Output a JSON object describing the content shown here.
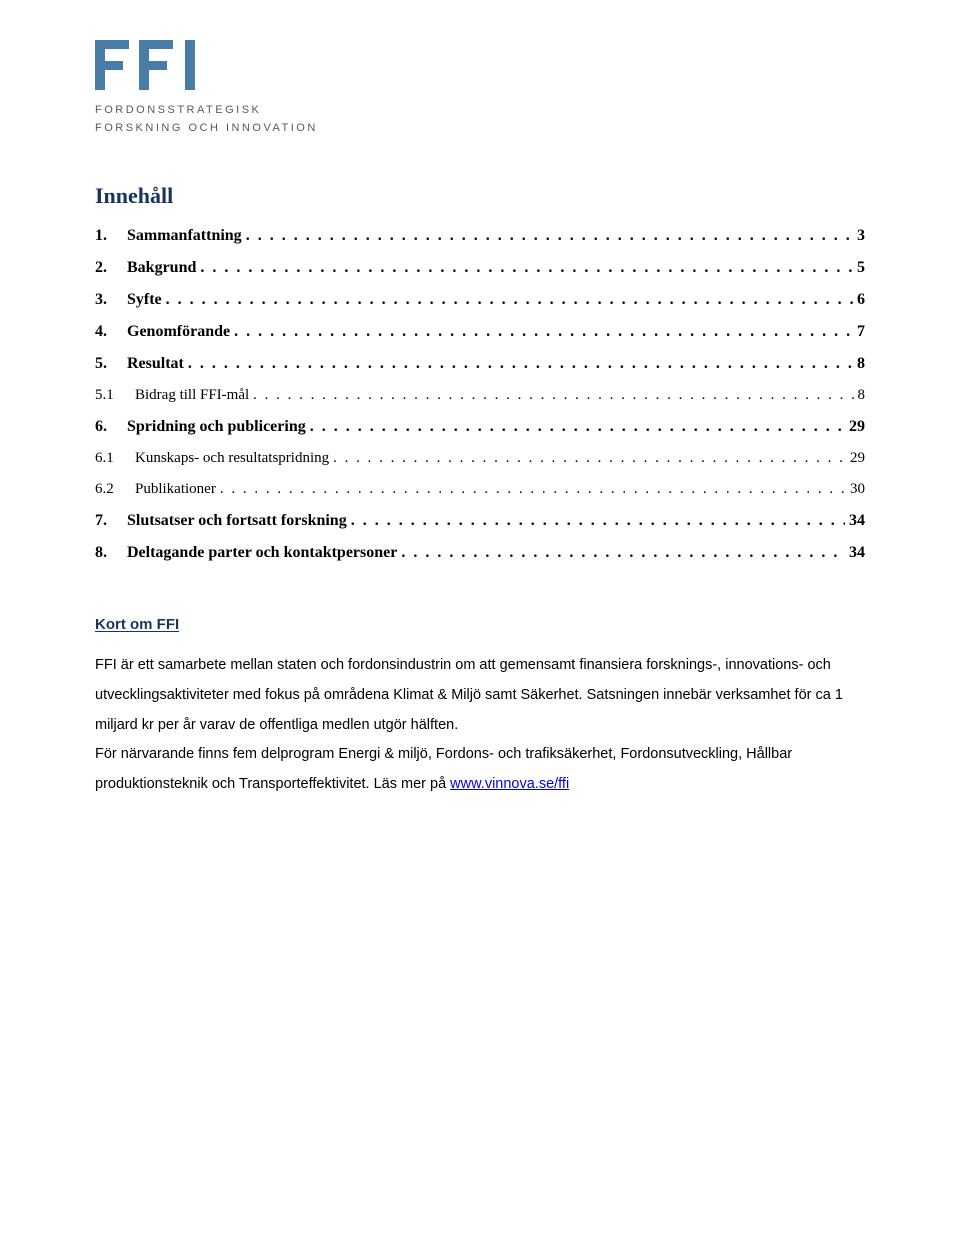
{
  "logo": {
    "letters": "FFI",
    "color": "#4a7ca8",
    "sub_line1": "Fordonsstrategisk",
    "sub_line2": "Forskning och Innovation",
    "sub_color": "#5a5a5a"
  },
  "heading_color": "#17365d",
  "toc": {
    "title": "Innehåll",
    "entries": [
      {
        "level": 1,
        "num": "1.",
        "label": "Sammanfattning",
        "page": "3"
      },
      {
        "level": 1,
        "num": "2.",
        "label": "Bakgrund",
        "page": "5"
      },
      {
        "level": 1,
        "num": "3.",
        "label": "Syfte",
        "page": "6"
      },
      {
        "level": 1,
        "num": "4.",
        "label": "Genomförande",
        "page": "7"
      },
      {
        "level": 1,
        "num": "5.",
        "label": "Resultat",
        "page": "8"
      },
      {
        "level": 2,
        "num": "5.1",
        "label": "Bidrag till FFI-mål",
        "page": "8"
      },
      {
        "level": 1,
        "num": "6.",
        "label": "Spridning och publicering",
        "page": "29"
      },
      {
        "level": 2,
        "num": "6.1",
        "label": "Kunskaps- och resultatspridning",
        "page": "29"
      },
      {
        "level": 2,
        "num": "6.2",
        "label": "Publikationer",
        "page": "30"
      },
      {
        "level": 1,
        "num": "7.",
        "label": "Slutsatser och fortsatt forskning",
        "page": "34"
      },
      {
        "level": 1,
        "num": "8.",
        "label": "Deltagande parter och kontaktpersoner",
        "page": "34"
      }
    ]
  },
  "kort": {
    "heading": " Kort om FFI",
    "para1_a": "FFI är ett samarbete mellan staten och fordonsindustrin om att gemensamt finansiera forsknings-, innovations- och utvecklingsaktiviteter med fokus på områdena Klimat & Miljö samt Säkerhet. Satsningen innebär verksamhet för ca 1 miljard kr per år varav de offentliga medlen utgör hälften.",
    "para2_a": "För närvarande finns fem delprogram Energi & miljö, Fordons- och trafiksäkerhet, Fordonsutveckling, Hållbar produktionsteknik och Transporteffektivitet. Läs mer på ",
    "link_text": "www.vinnova.se/ffi"
  }
}
